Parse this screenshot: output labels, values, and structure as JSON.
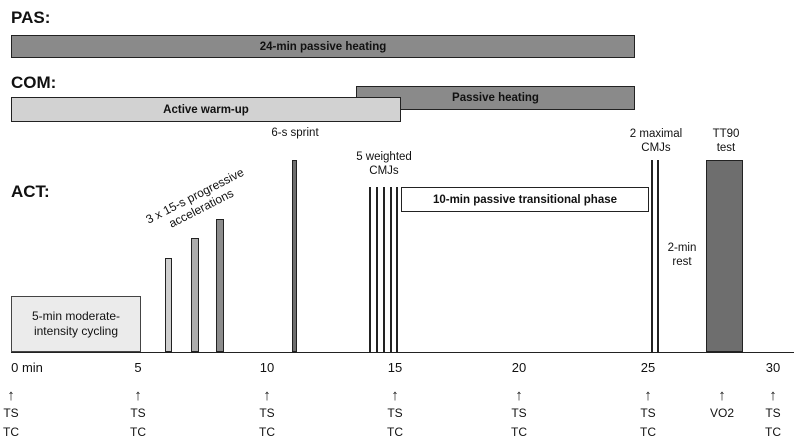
{
  "sections": {
    "pas": "PAS:",
    "com": "COM:",
    "act": "ACT:"
  },
  "bars": {
    "pas_heating": "24-min passive heating",
    "com_passive": "Passive heating",
    "com_warmup": "Active warm-up"
  },
  "act": {
    "cycling": "5-min moderate-intensity cycling",
    "accelerations": "3 x 15-s progressive accelerations",
    "sprint": "6-s sprint",
    "weighted_cmjs": "5 weighted CMJs",
    "transition": "10-min passive transitional phase",
    "maximal_cmjs": "2 maximal CMJs",
    "rest": "2-min rest",
    "tt90": "TT90 test"
  },
  "axis": {
    "ticks": [
      "0 min",
      "5",
      "10",
      "15",
      "20",
      "25",
      "30"
    ]
  },
  "measurements": [
    {
      "top": "TS",
      "bottom": "TC"
    },
    {
      "top": "TS",
      "bottom": "TC"
    },
    {
      "top": "TS",
      "bottom": "TC"
    },
    {
      "top": "TS",
      "bottom": "TC"
    },
    {
      "top": "TS",
      "bottom": "TC"
    },
    {
      "top": "TS",
      "bottom": "TC"
    },
    {
      "top": "VO2",
      "bottom": ""
    },
    {
      "top": "TS",
      "bottom": "TC"
    }
  ],
  "colors": {
    "dark_bar": "#8a8a8a",
    "light_bar": "#d2d2d2",
    "tt90_block": "#6e6e6e"
  }
}
